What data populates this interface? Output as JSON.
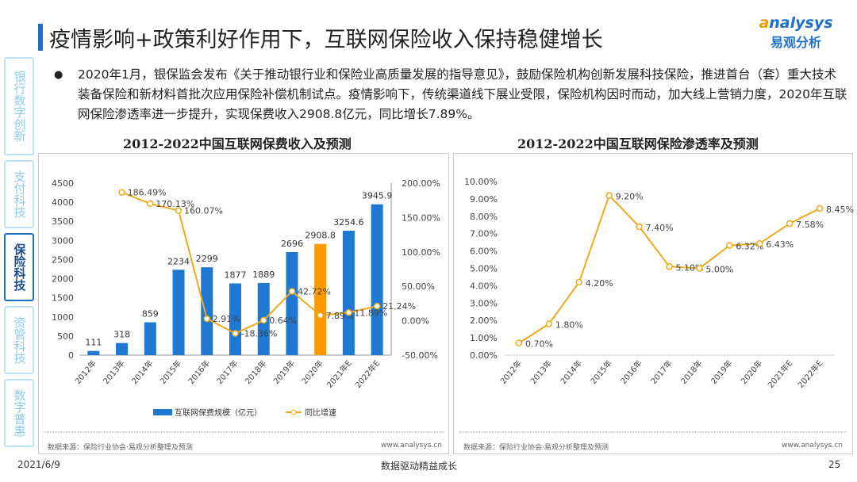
{
  "title": "疫情影响+政策利好作用下，互联网保险收入保持稳健增长",
  "logo": {
    "en_a": "a",
    "en_rest": "nalysys",
    "cn": "易观分析"
  },
  "sidebar": {
    "items": [
      {
        "label": "银行数字创新",
        "active": false
      },
      {
        "label": "支付科技",
        "active": false
      },
      {
        "label": "保险科技",
        "active": true
      },
      {
        "label": "资管科技",
        "active": false
      },
      {
        "label": "数字普惠",
        "active": false
      }
    ]
  },
  "bullet": "2020年1月，银保监会发布《关于推动银行业和保险业高质量发展的指导意见》，鼓励保险机构创新发展科技保险，推进首台（套）重大技术装备保险和新材料首批次应用保险补偿机制试点。疫情影响下，传统渠道线下展业受限，保险机构因时而动，加大线上营销力度，2020年互联网保险渗透率进一步提升，实现保费收入2908.8亿元，同比增长7.89%。",
  "footer": {
    "date": "2021/6/9",
    "slogan": "数据驱动精益成长",
    "page": "25"
  },
  "chart_data": [
    {
      "type": "bar+line",
      "title": "2012-2022中国互联网保费收入及预测",
      "categories": [
        "2012年",
        "2013年",
        "2014年",
        "2015年",
        "2016年",
        "2017年",
        "2018年",
        "2019年",
        "2020年",
        "2021年E",
        "2022年E"
      ],
      "series": [
        {
          "name": "互联网保费规模（亿元）",
          "type": "bar",
          "axis": "left",
          "values": [
            111,
            318,
            859,
            2234,
            2299,
            1877,
            1889,
            2696,
            2908.8,
            3254.6,
            3945.9
          ],
          "labels": [
            "111",
            "318",
            "859",
            "2234",
            "2299",
            "1877",
            "1889",
            "2696",
            "2908.8",
            "3254.6",
            "3945.9"
          ]
        },
        {
          "name": "同比增速",
          "type": "line",
          "axis": "right",
          "values": [
            null,
            186.49,
            170.13,
            160.07,
            2.91,
            -18.36,
            0.64,
            42.72,
            7.89,
            11.89,
            21.24
          ],
          "labels": [
            "",
            "186.49%",
            "170.13%",
            "160.07%",
            "2.91%",
            "-18.36%",
            "0.64%",
            "42.72%",
            "7.89%",
            "11.89%",
            "21.24%"
          ]
        }
      ],
      "yleft": {
        "range": [
          0,
          4500
        ],
        "ticks": [
          "0",
          "500",
          "1000",
          "1500",
          "2000",
          "2500",
          "3000",
          "3500",
          "4000",
          "4500"
        ]
      },
      "yright": {
        "range": [
          -50,
          200
        ],
        "ticks": [
          "-50.00%",
          "0.00%",
          "50.00%",
          "100.00%",
          "150.00%",
          "200.00%"
        ]
      },
      "colors": {
        "bar": "#1f78d1",
        "highlight": "#ff9900",
        "line": "#f0a91e"
      },
      "highlight_category": "2020年",
      "legend": "bottom",
      "source": "数据来源：保险行业协会·易观分析整理及预测",
      "site": "www.analysys.cn"
    },
    {
      "type": "line",
      "title": "2012-2022中国互联网保险渗透率及预测",
      "categories": [
        "2012年",
        "2013年",
        "2014年",
        "2015年",
        "2016年",
        "2017年",
        "2018年",
        "2019年",
        "2020年",
        "2021年E",
        "2022年E"
      ],
      "values": [
        0.7,
        1.8,
        4.2,
        9.2,
        7.4,
        5.1,
        5.0,
        6.32,
        6.43,
        7.58,
        8.45
      ],
      "labels": [
        "0.70%",
        "1.80%",
        "4.20%",
        "9.20%",
        "7.40%",
        "5.10%",
        "5.00%",
        "6.32%",
        "6.43%",
        "7.58%",
        "8.45%"
      ],
      "y": {
        "range": [
          0,
          10
        ],
        "ticks": [
          "0.00%",
          "1.00%",
          "2.00%",
          "3.00%",
          "4.00%",
          "5.00%",
          "6.00%",
          "7.00%",
          "8.00%",
          "9.00%",
          "10.00%"
        ]
      },
      "colors": {
        "line": "#f0a91e"
      },
      "source": "数据来源：保险行业协会·易观分析整理及预测",
      "site": "www.analysys.cn"
    }
  ]
}
